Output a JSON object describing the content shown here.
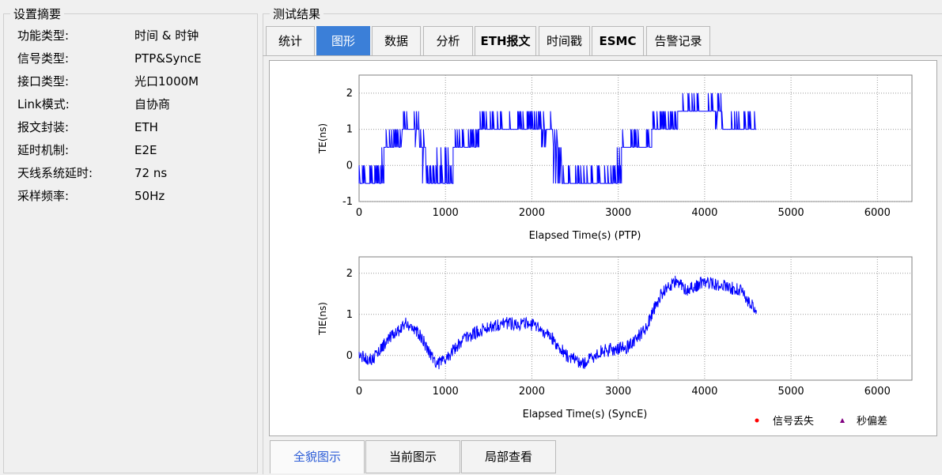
{
  "settings_group": {
    "title": "设置摘要",
    "rows": [
      {
        "label": "功能类型:",
        "value": "时间 & 时钟"
      },
      {
        "label": "信号类型:",
        "value": "PTP&SyncE"
      },
      {
        "label": "接口类型:",
        "value": "光口1000M"
      },
      {
        "label": "Link模式:",
        "value": "自协商"
      },
      {
        "label": "报文封装:",
        "value": "ETH"
      },
      {
        "label": "延时机制:",
        "value": "E2E"
      },
      {
        "label": "天线系统延时:",
        "value": "72 ns"
      },
      {
        "label": "采样频率:",
        "value": "50Hz"
      }
    ]
  },
  "results_group": {
    "title": "测试结果"
  },
  "tabs": [
    "统计",
    "图形",
    "数据",
    "分析",
    "ETH报文",
    "时间戳",
    "ESMC",
    "告警记录"
  ],
  "active_tab": "图形",
  "bottom_tabs": [
    "全貌图示",
    "当前图示",
    "局部查看"
  ],
  "active_bottom_tab": "全貌图示",
  "legend": {
    "signal_loss": {
      "label": "信号丢失",
      "color": "#ff0000",
      "marker": "circle"
    },
    "leap_second": {
      "label": "秒偏差",
      "color": "#800080",
      "marker": "triangle"
    }
  },
  "chart_data": [
    {
      "type": "line",
      "xlabel": "Elapsed Time(s) (PTP)",
      "ylabel": "TE(ns)",
      "xlim": [
        0,
        6400
      ],
      "ylim": [
        -1,
        2.5
      ],
      "xticks": [
        0,
        1000,
        2000,
        3000,
        4000,
        5000,
        6000
      ],
      "yticks": [
        -1,
        0,
        1,
        2
      ],
      "grid": true,
      "color": "#0000ff",
      "series": [
        {
          "values": [
            [
              0,
              -0.5
            ],
            [
              100,
              -0.5
            ],
            [
              250,
              -0.5
            ],
            [
              300,
              0.5
            ],
            [
              400,
              0.5
            ],
            [
              500,
              1.0
            ],
            [
              600,
              1.0
            ],
            [
              700,
              0.5
            ],
            [
              780,
              -0.5
            ],
            [
              900,
              -0.5
            ],
            [
              1100,
              0.5
            ],
            [
              1300,
              0.5
            ],
            [
              1400,
              1.0
            ],
            [
              1600,
              1.0
            ],
            [
              1800,
              1.0
            ],
            [
              2100,
              1.0
            ],
            [
              2250,
              0.5
            ],
            [
              2350,
              -0.5
            ],
            [
              2600,
              -0.5
            ],
            [
              2950,
              -0.5
            ],
            [
              3050,
              0.5
            ],
            [
              3300,
              0.5
            ],
            [
              3400,
              1.0
            ],
            [
              3700,
              1.5
            ],
            [
              3900,
              1.5
            ],
            [
              4100,
              1.5
            ],
            [
              4200,
              1.0
            ],
            [
              4600,
              1.0
            ]
          ]
        }
      ]
    },
    {
      "type": "line",
      "xlabel": "Elapsed Time(s) (SyncE)",
      "ylabel": "TIE(ns)",
      "xlim": [
        0,
        6400
      ],
      "ylim": [
        -0.6,
        2.4
      ],
      "xticks": [
        0,
        1000,
        2000,
        3000,
        4000,
        5000,
        6000
      ],
      "yticks": [
        0,
        1,
        2
      ],
      "grid": true,
      "color": "#0000ff",
      "series": [
        {
          "values": [
            [
              0,
              0.0
            ],
            [
              150,
              -0.1
            ],
            [
              300,
              0.3
            ],
            [
              550,
              0.8
            ],
            [
              700,
              0.5
            ],
            [
              900,
              -0.2
            ],
            [
              1000,
              -0.1
            ],
            [
              1200,
              0.4
            ],
            [
              1500,
              0.7
            ],
            [
              1700,
              0.8
            ],
            [
              2000,
              0.75
            ],
            [
              2200,
              0.5
            ],
            [
              2400,
              0.0
            ],
            [
              2600,
              -0.2
            ],
            [
              2800,
              0.1
            ],
            [
              3100,
              0.2
            ],
            [
              3300,
              0.6
            ],
            [
              3500,
              1.5
            ],
            [
              3650,
              1.8
            ],
            [
              3800,
              1.6
            ],
            [
              4000,
              1.8
            ],
            [
              4200,
              1.7
            ],
            [
              4400,
              1.6
            ],
            [
              4600,
              1.1
            ]
          ]
        }
      ]
    }
  ]
}
